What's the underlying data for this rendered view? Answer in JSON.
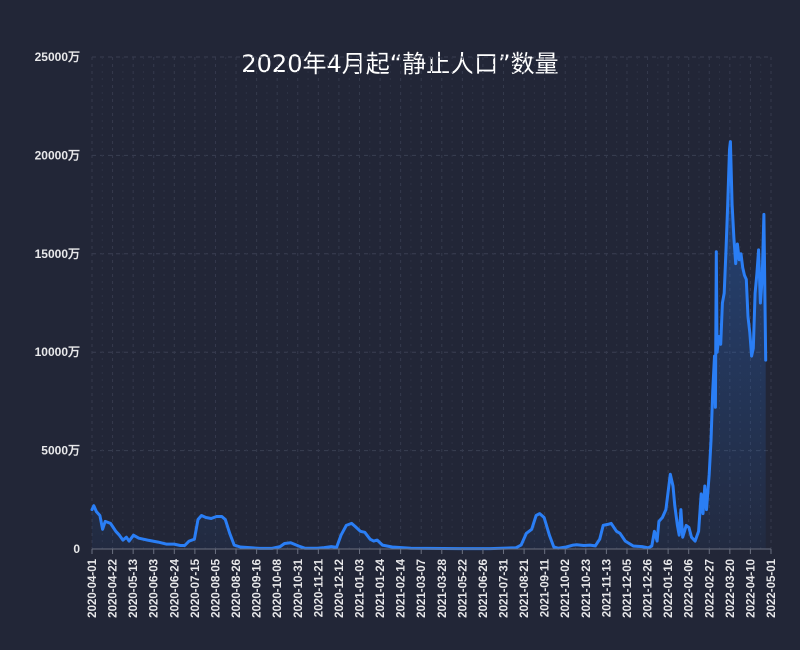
{
  "chart_data": {
    "type": "area",
    "title": "2020年4月起“静止人口”数量",
    "y_unit_suffix": "万",
    "ylim": [
      0,
      25000
    ],
    "y_ticks": [
      0,
      5000,
      10000,
      15000,
      20000,
      25000
    ],
    "y_tick_labels": [
      "0",
      "5000万",
      "10000万",
      "15000万",
      "20000万",
      "25000万"
    ],
    "x_start": "2020-04-01",
    "x_end": "2022-05-10",
    "x_tick_labels": [
      "2020-04-01",
      "2020-04-22",
      "2020-05-13",
      "2020-06-03",
      "2020-06-24",
      "2020-07-15",
      "2020-08-05",
      "2020-08-26",
      "2020-09-16",
      "2020-10-08",
      "2020-10-31",
      "2020-11-21",
      "2020-12-12",
      "2021-01-03",
      "2021-01-24",
      "2021-02-14",
      "2021-03-07",
      "2021-03-28",
      "2021-05-22",
      "2021-06-26",
      "2021-07-31",
      "2021-08-21",
      "2021-09-11",
      "2021-10-02",
      "2021-10-23",
      "2021-11-13",
      "2021-12-05",
      "2021-12-26",
      "2022-01-16",
      "2022-02-06",
      "2022-02-27",
      "2022-03-20",
      "2022-04-10",
      "2022-05-01"
    ],
    "grid": true,
    "line_color": "#2a7ef5",
    "series": [
      {
        "points": [
          [
            "2020-04-01",
            2000
          ],
          [
            "2020-04-03",
            2200
          ],
          [
            "2020-04-06",
            1900
          ],
          [
            "2020-04-10",
            1700
          ],
          [
            "2020-04-13",
            1000
          ],
          [
            "2020-04-16",
            1400
          ],
          [
            "2020-04-22",
            1300
          ],
          [
            "2020-04-25",
            1100
          ],
          [
            "2020-04-28",
            900
          ],
          [
            "2020-05-02",
            700
          ],
          [
            "2020-05-06",
            450
          ],
          [
            "2020-05-10",
            600
          ],
          [
            "2020-05-13",
            400
          ],
          [
            "2020-05-18",
            700
          ],
          [
            "2020-05-24",
            550
          ],
          [
            "2020-06-03",
            450
          ],
          [
            "2020-06-15",
            350
          ],
          [
            "2020-06-24",
            250
          ],
          [
            "2020-07-03",
            250
          ],
          [
            "2020-07-10",
            180
          ],
          [
            "2020-07-15",
            180
          ],
          [
            "2020-07-20",
            400
          ],
          [
            "2020-07-26",
            500
          ],
          [
            "2020-07-30",
            1500
          ],
          [
            "2020-08-03",
            1700
          ],
          [
            "2020-08-08",
            1600
          ],
          [
            "2020-08-14",
            1550
          ],
          [
            "2020-08-20",
            1650
          ],
          [
            "2020-08-26",
            1650
          ],
          [
            "2020-08-30",
            1500
          ],
          [
            "2020-09-04",
            800
          ],
          [
            "2020-09-09",
            200
          ],
          [
            "2020-09-16",
            100
          ],
          [
            "2020-10-08",
            30
          ],
          [
            "2020-10-22",
            30
          ],
          [
            "2020-10-31",
            120
          ],
          [
            "2020-11-05",
            280
          ],
          [
            "2020-11-12",
            320
          ],
          [
            "2020-11-21",
            150
          ],
          [
            "2020-11-28",
            40
          ],
          [
            "2020-12-12",
            40
          ],
          [
            "2020-12-20",
            70
          ],
          [
            "2020-12-28",
            120
          ],
          [
            "2021-01-03",
            80
          ],
          [
            "2021-01-08",
            700
          ],
          [
            "2021-01-14",
            1200
          ],
          [
            "2021-01-20",
            1300
          ],
          [
            "2021-01-24",
            1150
          ],
          [
            "2021-01-30",
            900
          ],
          [
            "2021-02-04",
            850
          ],
          [
            "2021-02-10",
            500
          ],
          [
            "2021-02-14",
            400
          ],
          [
            "2021-02-18",
            450
          ],
          [
            "2021-02-24",
            200
          ],
          [
            "2021-03-07",
            100
          ],
          [
            "2021-03-28",
            40
          ],
          [
            "2021-05-22",
            20
          ],
          [
            "2021-06-26",
            20
          ],
          [
            "2021-07-25",
            60
          ],
          [
            "2021-07-31",
            200
          ],
          [
            "2021-08-06",
            800
          ],
          [
            "2021-08-12",
            1000
          ],
          [
            "2021-08-17",
            1700
          ],
          [
            "2021-08-21",
            1800
          ],
          [
            "2021-08-26",
            1600
          ],
          [
            "2021-09-01",
            700
          ],
          [
            "2021-09-06",
            100
          ],
          [
            "2021-09-11",
            40
          ],
          [
            "2021-09-20",
            100
          ],
          [
            "2021-09-28",
            200
          ],
          [
            "2021-10-02",
            220
          ],
          [
            "2021-10-10",
            180
          ],
          [
            "2021-10-17",
            200
          ],
          [
            "2021-10-23",
            160
          ],
          [
            "2021-10-28",
            500
          ],
          [
            "2021-11-01",
            1200
          ],
          [
            "2021-11-06",
            1250
          ],
          [
            "2021-11-10",
            1300
          ],
          [
            "2021-11-16",
            900
          ],
          [
            "2021-11-20",
            800
          ],
          [
            "2021-11-26",
            400
          ],
          [
            "2021-12-05",
            150
          ],
          [
            "2021-12-15",
            120
          ],
          [
            "2021-12-22",
            60
          ],
          [
            "2021-12-26",
            150
          ],
          [
            "2021-12-29",
            900
          ],
          [
            "2022-01-01",
            400
          ],
          [
            "2022-01-03",
            1400
          ],
          [
            "2022-01-07",
            1600
          ],
          [
            "2022-01-11",
            2000
          ],
          [
            "2022-01-16",
            3800
          ],
          [
            "2022-01-19",
            3200
          ],
          [
            "2022-01-21",
            2200
          ],
          [
            "2022-01-24",
            1200
          ],
          [
            "2022-01-26",
            700
          ],
          [
            "2022-01-28",
            2000
          ],
          [
            "2022-01-30",
            600
          ],
          [
            "2022-02-01",
            900
          ],
          [
            "2022-02-03",
            1200
          ],
          [
            "2022-02-06",
            1100
          ],
          [
            "2022-02-09",
            600
          ],
          [
            "2022-02-13",
            400
          ],
          [
            "2022-02-17",
            900
          ],
          [
            "2022-02-20",
            2800
          ],
          [
            "2022-02-22",
            1800
          ],
          [
            "2022-02-24",
            3200
          ],
          [
            "2022-02-26",
            2000
          ],
          [
            "2022-02-27",
            2600
          ],
          [
            "2022-03-01",
            3800
          ],
          [
            "2022-03-03",
            5500
          ],
          [
            "2022-03-05",
            8000
          ],
          [
            "2022-03-07",
            9800
          ],
          [
            "2022-03-08",
            7200
          ],
          [
            "2022-03-09",
            15100
          ],
          [
            "2022-03-10",
            10000
          ],
          [
            "2022-03-12",
            10800
          ],
          [
            "2022-03-14",
            10400
          ],
          [
            "2022-03-16",
            12500
          ],
          [
            "2022-03-18",
            13000
          ],
          [
            "2022-03-20",
            15200
          ],
          [
            "2022-03-22",
            17500
          ],
          [
            "2022-03-24",
            20300
          ],
          [
            "2022-03-25",
            20700
          ],
          [
            "2022-03-27",
            17500
          ],
          [
            "2022-03-29",
            15800
          ],
          [
            "2022-03-31",
            14500
          ],
          [
            "2022-04-02",
            15500
          ],
          [
            "2022-04-04",
            14700
          ],
          [
            "2022-04-06",
            15000
          ],
          [
            "2022-04-08",
            14300
          ],
          [
            "2022-04-10",
            13900
          ],
          [
            "2022-04-12",
            13700
          ],
          [
            "2022-04-14",
            11800
          ],
          [
            "2022-04-16",
            11000
          ],
          [
            "2022-04-18",
            9800
          ],
          [
            "2022-04-20",
            10200
          ],
          [
            "2022-04-22",
            13000
          ],
          [
            "2022-04-24",
            14000
          ],
          [
            "2022-04-26",
            15200
          ],
          [
            "2022-04-28",
            12500
          ],
          [
            "2022-04-30",
            13800
          ],
          [
            "2022-05-02",
            17000
          ],
          [
            "2022-05-04",
            9600
          ]
        ]
      }
    ]
  }
}
